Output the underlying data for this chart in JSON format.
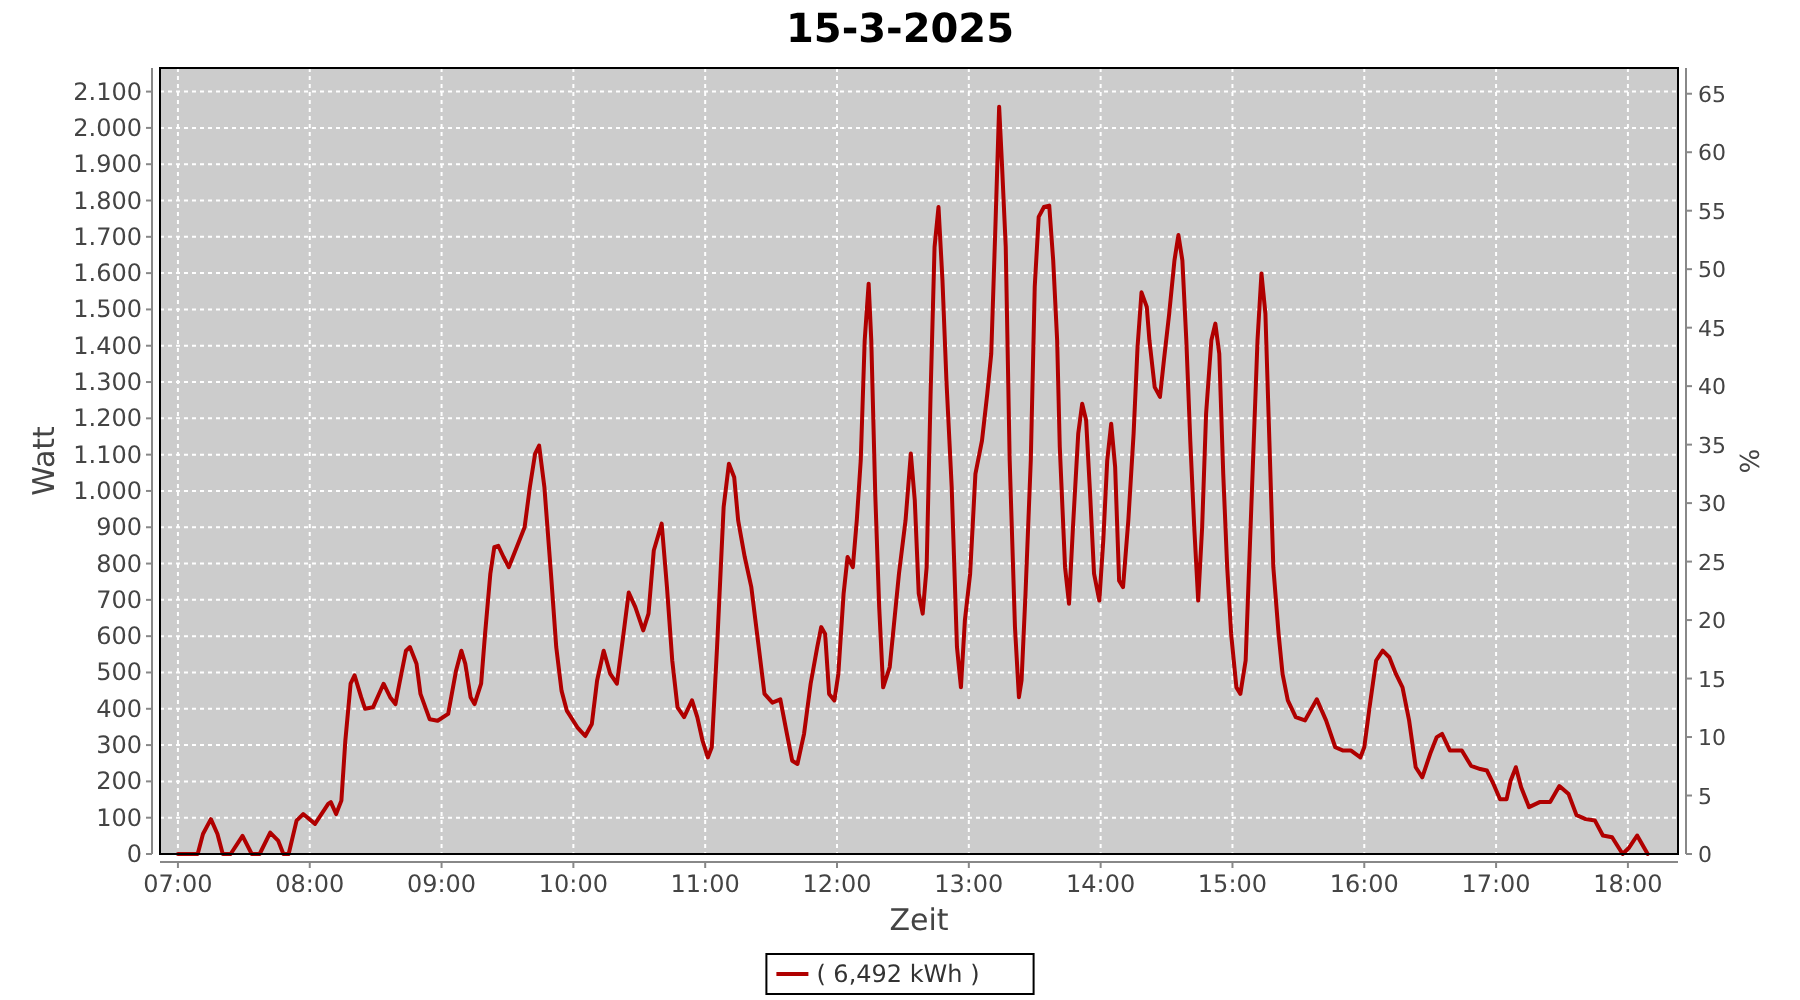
{
  "chart_data": {
    "type": "line",
    "title": "15-3-2025",
    "xlabel": "Zeit",
    "ylabel": "Watt",
    "y2label": "%",
    "xlim": [
      6.864,
      18.38
    ],
    "ylim": [
      0,
      2165
    ],
    "y2lim": [
      0,
      67.2
    ],
    "xticks": [
      {
        "value": 7,
        "label": "07:00"
      },
      {
        "value": 8,
        "label": "08:00"
      },
      {
        "value": 9,
        "label": "09:00"
      },
      {
        "value": 10,
        "label": "10:00"
      },
      {
        "value": 11,
        "label": "11:00"
      },
      {
        "value": 12,
        "label": "12:00"
      },
      {
        "value": 13,
        "label": "13:00"
      },
      {
        "value": 14,
        "label": "14:00"
      },
      {
        "value": 15,
        "label": "15:00"
      },
      {
        "value": 16,
        "label": "16:00"
      },
      {
        "value": 17,
        "label": "17:00"
      },
      {
        "value": 18,
        "label": "18:00"
      }
    ],
    "yticks": [
      0,
      100,
      200,
      300,
      400,
      500,
      600,
      700,
      800,
      900,
      {
        "value": 1000,
        "label": "1.000"
      },
      {
        "value": 1100,
        "label": "1.100"
      },
      {
        "value": 1200,
        "label": "1.200"
      },
      {
        "value": 1300,
        "label": "1.300"
      },
      {
        "value": 1400,
        "label": "1.400"
      },
      {
        "value": 1500,
        "label": "1.500"
      },
      {
        "value": 1600,
        "label": "1.600"
      },
      {
        "value": 1700,
        "label": "1.700"
      },
      {
        "value": 1800,
        "label": "1.800"
      },
      {
        "value": 1900,
        "label": "1.900"
      },
      {
        "value": 2000,
        "label": "2.000"
      },
      {
        "value": 2100,
        "label": "2.100"
      }
    ],
    "y2ticks": [
      0,
      5,
      10,
      15,
      20,
      25,
      30,
      35,
      40,
      45,
      50,
      55,
      60,
      65
    ],
    "grid": true,
    "legend": "bottom",
    "series": [
      {
        "name": "( 6,492 kWh )",
        "color": "#b00000",
        "x": [
          7.0,
          7.15,
          7.19,
          7.25,
          7.3,
          7.34,
          7.4,
          7.49,
          7.56,
          7.62,
          7.7,
          7.76,
          7.8,
          7.84,
          7.9,
          7.95,
          8.04,
          8.14,
          8.16,
          8.2,
          8.24,
          8.27,
          8.31,
          8.34,
          8.39,
          8.42,
          8.48,
          8.56,
          8.61,
          8.65,
          8.68,
          8.73,
          8.76,
          8.81,
          8.84,
          8.91,
          8.97,
          9.05,
          9.11,
          9.15,
          9.18,
          9.22,
          9.25,
          9.3,
          9.33,
          9.37,
          9.4,
          9.43,
          9.47,
          9.51,
          9.57,
          9.63,
          9.67,
          9.71,
          9.74,
          9.78,
          9.83,
          9.87,
          9.91,
          9.95,
          10.03,
          10.09,
          10.14,
          10.18,
          10.23,
          10.28,
          10.33,
          10.38,
          10.42,
          10.47,
          10.53,
          10.57,
          10.61,
          10.67,
          10.71,
          10.75,
          10.79,
          10.84,
          10.9,
          10.94,
          10.98,
          11.02,
          11.05,
          11.09,
          11.14,
          11.18,
          11.22,
          11.25,
          11.3,
          11.35,
          11.4,
          11.45,
          11.51,
          11.57,
          11.62,
          11.66,
          11.7,
          11.75,
          11.8,
          11.85,
          11.88,
          11.91,
          11.94,
          11.98,
          12.01,
          12.05,
          12.08,
          12.12,
          12.15,
          12.18,
          12.21,
          12.24,
          12.26,
          12.29,
          12.32,
          12.35,
          12.4,
          12.43,
          12.47,
          12.52,
          12.56,
          12.59,
          12.62,
          12.65,
          12.68,
          12.71,
          12.74,
          12.77,
          12.8,
          12.83,
          12.87,
          12.91,
          12.94,
          12.97,
          13.01,
          13.05,
          13.1,
          13.14,
          13.17,
          13.2,
          13.23,
          13.25,
          13.28,
          13.31,
          13.35,
          13.38,
          13.4,
          13.43,
          13.47,
          13.5,
          13.53,
          13.57,
          13.61,
          13.64,
          13.67,
          13.69,
          13.73,
          13.76,
          13.79,
          13.83,
          13.86,
          13.89,
          13.92,
          13.95,
          13.99,
          14.02,
          14.05,
          14.08,
          14.11,
          14.14,
          14.17,
          14.21,
          14.25,
          14.28,
          14.31,
          14.35,
          14.37,
          14.41,
          14.45,
          14.48,
          14.52,
          14.56,
          14.59,
          14.62,
          14.65,
          14.68,
          14.71,
          14.74,
          14.77,
          14.8,
          14.84,
          14.87,
          14.9,
          14.93,
          14.96,
          14.99,
          15.03,
          15.06,
          15.1,
          15.13,
          15.16,
          15.19,
          15.22,
          15.25,
          15.28,
          15.31,
          15.35,
          15.38,
          15.42,
          15.48,
          15.55,
          15.64,
          15.71,
          15.78,
          15.84,
          15.9,
          15.97,
          16.0,
          16.04,
          16.09,
          16.14,
          16.19,
          16.24,
          16.29,
          16.34,
          16.39,
          16.44,
          16.5,
          16.55,
          16.59,
          16.65,
          16.74,
          16.81,
          16.88,
          16.93,
          16.98,
          17.03,
          17.08,
          17.11,
          17.15,
          17.19,
          17.25,
          17.33,
          17.41,
          17.48,
          17.55,
          17.61,
          17.68,
          17.75,
          17.81,
          17.88,
          17.96,
          18.01,
          18.07,
          18.15
        ],
        "values": [
          0,
          0,
          55,
          96,
          55,
          0,
          0,
          50,
          0,
          0,
          59,
          37,
          0,
          0,
          92,
          110,
          83,
          138,
          143,
          110,
          147,
          312,
          469,
          492,
          432,
          400,
          404,
          469,
          432,
          413,
          469,
          560,
          570,
          524,
          441,
          371,
          367,
          386,
          505,
          560,
          524,
          432,
          413,
          469,
          606,
          772,
          845,
          849,
          818,
          790,
          845,
          900,
          1011,
          1103,
          1125,
          1011,
          772,
          570,
          450,
          395,
          349,
          325,
          358,
          478,
          560,
          496,
          469,
          606,
          720,
          680,
          616,
          662,
          836,
          910,
          735,
          533,
          404,
          377,
          423,
          377,
          312,
          266,
          294,
          570,
          956,
          1075,
          1038,
          919,
          818,
          735,
          588,
          441,
          417,
          426,
          331,
          257,
          248,
          331,
          469,
          570,
          625,
          606,
          441,
          423,
          496,
          717,
          818,
          790,
          919,
          1084,
          1415,
          1571,
          1415,
          992,
          680,
          459,
          515,
          625,
          772,
          919,
          1103,
          974,
          717,
          662,
          790,
          1268,
          1672,
          1782,
          1580,
          1305,
          1011,
          570,
          459,
          643,
          772,
          1047,
          1139,
          1268,
          1378,
          1709,
          2058,
          1911,
          1672,
          1084,
          625,
          432,
          478,
          717,
          1084,
          1562,
          1755,
          1782,
          1786,
          1635,
          1415,
          1121,
          790,
          689,
          900,
          1158,
          1240,
          1194,
          992,
          772,
          698,
          864,
          1084,
          1185,
          1066,
          753,
          735,
          919,
          1158,
          1397,
          1547,
          1507,
          1415,
          1286,
          1259,
          1360,
          1488,
          1635,
          1705,
          1635,
          1415,
          1139,
          900,
          698,
          900,
          1213,
          1415,
          1461,
          1378,
          1047,
          790,
          606,
          459,
          441,
          533,
          827,
          1121,
          1415,
          1599,
          1488,
          1139,
          790,
          606,
          496,
          423,
          377,
          368,
          426,
          368,
          294,
          285,
          285,
          266,
          294,
          404,
          533,
          560,
          542,
          496,
          459,
          368,
          239,
          211,
          276,
          322,
          331,
          285,
          285,
          243,
          234,
          230,
          193,
          151,
          151,
          202,
          239,
          184,
          129,
          143,
          143,
          187,
          165,
          107,
          96,
          92,
          51,
          46,
          0,
          18,
          51,
          0
        ]
      }
    ]
  }
}
